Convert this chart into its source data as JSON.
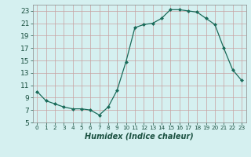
{
  "x": [
    0,
    1,
    2,
    3,
    4,
    5,
    6,
    7,
    8,
    9,
    10,
    11,
    12,
    13,
    14,
    15,
    16,
    17,
    18,
    19,
    20,
    21,
    22,
    23
  ],
  "y": [
    10,
    8.5,
    8,
    7.5,
    7.2,
    7.2,
    7.0,
    6.2,
    7.5,
    10.2,
    14.8,
    20.3,
    20.8,
    21.0,
    21.8,
    23.2,
    23.2,
    23.0,
    22.8,
    21.8,
    20.8,
    17.0,
    13.5,
    11.8
  ],
  "line_color": "#1a6b5a",
  "marker": "D",
  "marker_size": 2.0,
  "bg_color": "#d5f0f0",
  "grid_color": "#c8a0a0",
  "xlabel": "Humidex (Indice chaleur)",
  "xlim": [
    -0.5,
    23.5
  ],
  "ylim": [
    5,
    24
  ],
  "yticks": [
    5,
    7,
    9,
    11,
    13,
    15,
    17,
    19,
    21,
    23
  ],
  "xticks": [
    0,
    1,
    2,
    3,
    4,
    5,
    6,
    7,
    8,
    9,
    10,
    11,
    12,
    13,
    14,
    15,
    16,
    17,
    18,
    19,
    20,
    21,
    22,
    23
  ],
  "xlabel_fontsize": 7,
  "tick_fontsize": 6.5
}
